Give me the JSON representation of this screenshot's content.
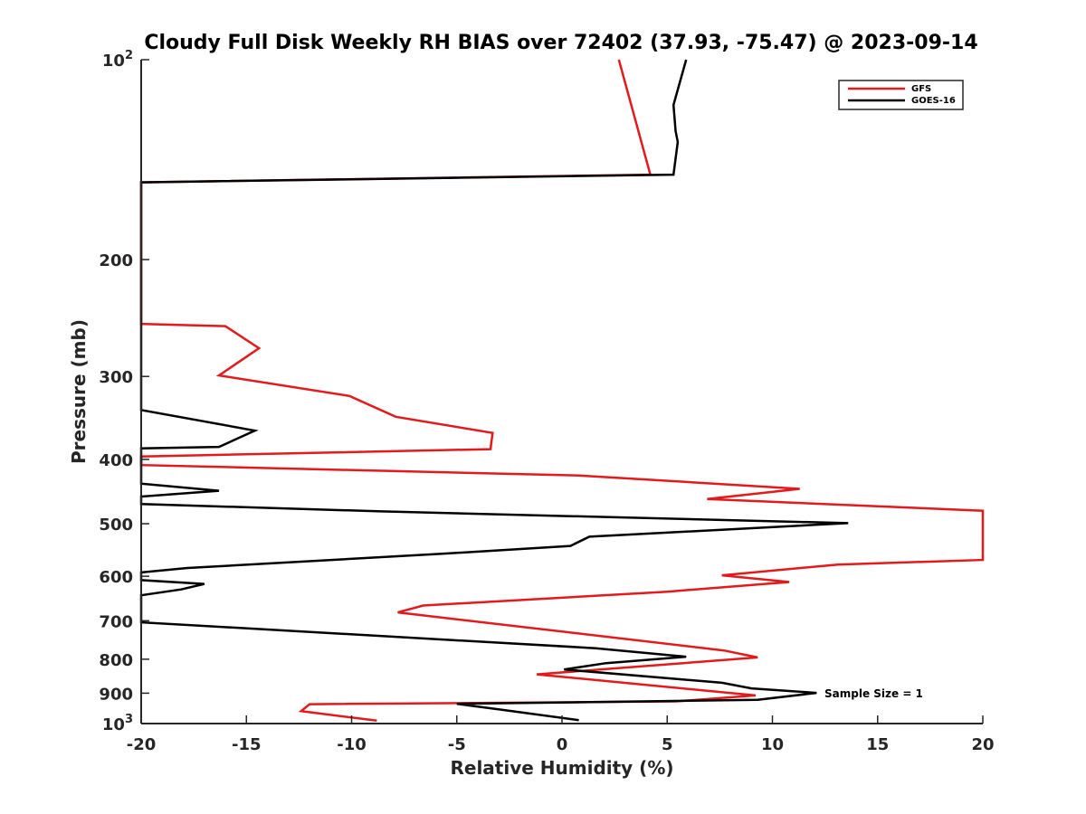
{
  "chart_data": {
    "type": "line",
    "title": "Cloudy Full Disk Weekly RH BIAS over 72402 (37.93, -75.47) @ 2023-09-14",
    "xlabel": "Relative Humidity (%)",
    "ylabel": "Pressure (mb)",
    "xlim": [
      -20,
      20
    ],
    "ylim": [
      100,
      1000
    ],
    "yscale": "log",
    "y_reversed": true,
    "x_ticks": [
      {
        "value": -20,
        "label": "-20"
      },
      {
        "value": -15,
        "label": "-15"
      },
      {
        "value": -10,
        "label": "-10"
      },
      {
        "value": -5,
        "label": "-5"
      },
      {
        "value": 0,
        "label": "0"
      },
      {
        "value": 5,
        "label": "5"
      },
      {
        "value": 10,
        "label": "10"
      },
      {
        "value": 15,
        "label": "15"
      },
      {
        "value": 20,
        "label": "20"
      }
    ],
    "y_ticks": [
      {
        "value": 100,
        "base": "10",
        "exp": "2"
      },
      {
        "value": 200,
        "base": "200"
      },
      {
        "value": 300,
        "base": "300"
      },
      {
        "value": 400,
        "base": "400"
      },
      {
        "value": 500,
        "base": "500"
      },
      {
        "value": 600,
        "base": "600"
      },
      {
        "value": 700,
        "base": "700"
      },
      {
        "value": 800,
        "base": "800"
      },
      {
        "value": 900,
        "base": "900"
      },
      {
        "value": 1000,
        "base": "10",
        "exp": "3"
      }
    ],
    "grid": false,
    "legend_position": "top-right",
    "annotation": "Sample Size = 1",
    "series": [
      {
        "name": "GFS",
        "color": "#e31a1c",
        "points": [
          [
            2.7,
            100
          ],
          [
            4.2,
            149
          ],
          [
            -20,
            153
          ],
          [
            -20,
            250
          ],
          [
            -16,
            252
          ],
          [
            -14.4,
            272
          ],
          [
            -16.3,
            299
          ],
          [
            -10.1,
            321
          ],
          [
            -7.9,
            345
          ],
          [
            -3.3,
            365
          ],
          [
            -3.4,
            386
          ],
          [
            -20,
            396
          ],
          [
            -20,
            408
          ],
          [
            0.8,
            423
          ],
          [
            11.3,
            443
          ],
          [
            6.9,
            459
          ],
          [
            20,
            478
          ],
          [
            20,
            567
          ],
          [
            13.1,
            576
          ],
          [
            7.6,
            598
          ],
          [
            10.8,
            612
          ],
          [
            5.0,
            633
          ],
          [
            -6.6,
            664
          ],
          [
            -7.8,
            680
          ],
          [
            7.7,
            776
          ],
          [
            9.3,
            795
          ],
          [
            -1.2,
            843
          ],
          [
            9.2,
            907
          ],
          [
            5.4,
            926
          ],
          [
            -12,
            935
          ],
          [
            -12.4,
            958
          ],
          [
            -8.8,
            990
          ]
        ]
      },
      {
        "name": "GOES-16",
        "color": "#000000",
        "points": [
          [
            5.9,
            100
          ],
          [
            5.3,
            117
          ],
          [
            5.4,
            128
          ],
          [
            5.5,
            133
          ],
          [
            5.3,
            149
          ],
          [
            -20,
            153
          ],
          [
            -20,
            337
          ],
          [
            -14.6,
            362
          ],
          [
            -16.3,
            383
          ],
          [
            -20,
            385
          ],
          [
            -20,
            435
          ],
          [
            -16.3,
            446
          ],
          [
            -20,
            455
          ],
          [
            -20,
            467
          ],
          [
            -8.6,
            479
          ],
          [
            13.6,
            499
          ],
          [
            1.3,
            523
          ],
          [
            0.4,
            540
          ],
          [
            -5.7,
            555
          ],
          [
            -17.8,
            583
          ],
          [
            -20,
            592
          ],
          [
            -20,
            608
          ],
          [
            -17,
            616
          ],
          [
            -18.1,
            628
          ],
          [
            -20,
            641
          ],
          [
            -20,
            704
          ],
          [
            1.6,
            770
          ],
          [
            5.9,
            793
          ],
          [
            2.1,
            811
          ],
          [
            0.1,
            829
          ],
          [
            7.6,
            868
          ],
          [
            9,
            885
          ],
          [
            12.1,
            899
          ],
          [
            9.3,
            921
          ],
          [
            -5,
            934
          ],
          [
            -2.7,
            955
          ],
          [
            0.8,
            988
          ]
        ]
      }
    ]
  }
}
